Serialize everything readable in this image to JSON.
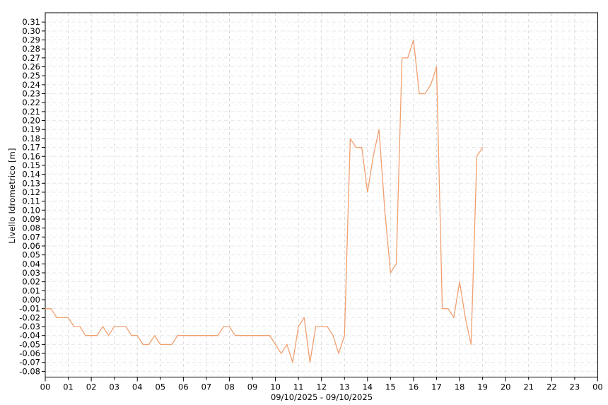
{
  "chart_data": {
    "type": "line",
    "title": "",
    "x_axis": {
      "label": "09/10/2025 - 09/10/2025",
      "tick_labels": [
        "00",
        "01",
        "02",
        "03",
        "04",
        "05",
        "06",
        "07",
        "08",
        "09",
        "10",
        "11",
        "12",
        "13",
        "14",
        "15",
        "16",
        "17",
        "18",
        "19",
        "20",
        "21",
        "22",
        "23",
        "00"
      ],
      "range_hours": [
        0,
        24
      ],
      "minor_tick_hours": 0.25
    },
    "y_axis": {
      "label": "Livello Idrometrico [m]",
      "tick_labels": [
        "0.31",
        "0.30",
        "0.29",
        "0.28",
        "0.27",
        "0.26",
        "0.25",
        "0.24",
        "0.23",
        "0.22",
        "0.21",
        "0.20",
        "0.19",
        "0.18",
        "0.17",
        "0.16",
        "0.15",
        "0.14",
        "0.13",
        "0.12",
        "0.11",
        "0.10",
        "0.09",
        "0.08",
        "0.07",
        "0.06",
        "0.05",
        "0.04",
        "0.03",
        "0.02",
        "0.01",
        "0.00",
        "-0.01",
        "-0.02",
        "-0.03",
        "-0.04",
        "-0.05",
        "-0.06",
        "-0.07",
        "-0.08"
      ],
      "ylim": [
        -0.0864,
        0.3204
      ]
    },
    "grid": {
      "show": true,
      "h_color": "#e7e7e7",
      "v_hour_color": "#d8d8d8",
      "v_minor_color": "#f0f0f0"
    },
    "line": {
      "color": "#f0a070",
      "width": 1.3
    },
    "axis_color": "#000000",
    "text_color": "#000000",
    "series": [
      {
        "name": "Livello Idrometrico [m]",
        "points": [
          [
            0.0,
            -0.01
          ],
          [
            0.25,
            -0.01
          ],
          [
            0.5,
            -0.02
          ],
          [
            0.75,
            -0.02
          ],
          [
            1.0,
            -0.02
          ],
          [
            1.25,
            -0.03
          ],
          [
            1.5,
            -0.03
          ],
          [
            1.75,
            -0.04
          ],
          [
            2.0,
            -0.04
          ],
          [
            2.25,
            -0.04
          ],
          [
            2.5,
            -0.03
          ],
          [
            2.75,
            -0.04
          ],
          [
            3.0,
            -0.03
          ],
          [
            3.25,
            -0.03
          ],
          [
            3.5,
            -0.03
          ],
          [
            3.75,
            -0.04
          ],
          [
            4.0,
            -0.04
          ],
          [
            4.25,
            -0.05
          ],
          [
            4.5,
            -0.05
          ],
          [
            4.75,
            -0.04
          ],
          [
            5.0,
            -0.05
          ],
          [
            5.25,
            -0.05
          ],
          [
            5.5,
            -0.05
          ],
          [
            5.75,
            -0.04
          ],
          [
            6.0,
            -0.04
          ],
          [
            6.25,
            -0.04
          ],
          [
            6.5,
            -0.04
          ],
          [
            6.75,
            -0.04
          ],
          [
            7.0,
            -0.04
          ],
          [
            7.25,
            -0.04
          ],
          [
            7.5,
            -0.04
          ],
          [
            7.75,
            -0.03
          ],
          [
            8.0,
            -0.03
          ],
          [
            8.25,
            -0.04
          ],
          [
            8.5,
            -0.04
          ],
          [
            8.75,
            -0.04
          ],
          [
            9.0,
            -0.04
          ],
          [
            9.25,
            -0.04
          ],
          [
            9.5,
            -0.04
          ],
          [
            9.75,
            -0.04
          ],
          [
            10.0,
            -0.05
          ],
          [
            10.25,
            -0.06
          ],
          [
            10.5,
            -0.05
          ],
          [
            10.75,
            -0.07
          ],
          [
            11.0,
            -0.03
          ],
          [
            11.25,
            -0.02
          ],
          [
            11.5,
            -0.07
          ],
          [
            11.75,
            -0.03
          ],
          [
            12.0,
            -0.03
          ],
          [
            12.25,
            -0.03
          ],
          [
            12.5,
            -0.04
          ],
          [
            12.75,
            -0.06
          ],
          [
            13.0,
            -0.04
          ],
          [
            13.25,
            0.18
          ],
          [
            13.5,
            0.17
          ],
          [
            13.75,
            0.17
          ],
          [
            14.0,
            0.12
          ],
          [
            14.25,
            0.16
          ],
          [
            14.5,
            0.19
          ],
          [
            14.75,
            0.1
          ],
          [
            15.0,
            0.03
          ],
          [
            15.25,
            0.04
          ],
          [
            15.5,
            0.27
          ],
          [
            15.75,
            0.27
          ],
          [
            16.0,
            0.29
          ],
          [
            16.25,
            0.23
          ],
          [
            16.5,
            0.23
          ],
          [
            16.75,
            0.24
          ],
          [
            17.0,
            0.26
          ],
          [
            17.25,
            -0.01
          ],
          [
            17.5,
            -0.01
          ],
          [
            17.75,
            -0.02
          ],
          [
            18.0,
            0.02
          ],
          [
            18.25,
            -0.02
          ],
          [
            18.5,
            -0.05
          ],
          [
            18.75,
            0.16
          ],
          [
            19.0,
            0.17
          ]
        ]
      }
    ]
  }
}
